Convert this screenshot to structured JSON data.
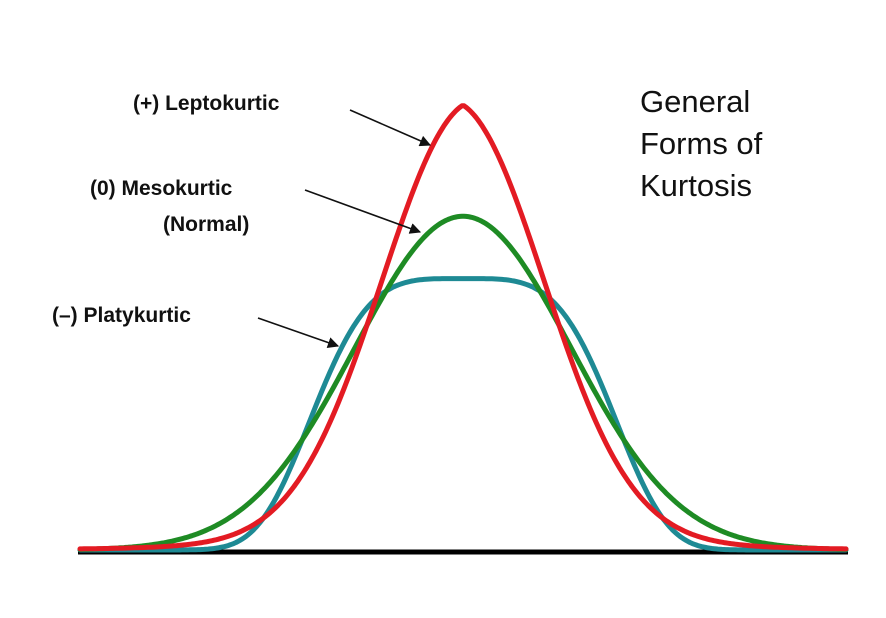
{
  "title_lines": [
    "General",
    "Forms of",
    "Kurtosis"
  ],
  "labels": {
    "leptokurtic": "(+) Leptokurtic",
    "mesokurtic": "(0) Mesokurtic",
    "normal": "(Normal)",
    "platykurtic": "(–) Platykurtic"
  },
  "colors": {
    "leptokurtic": "#e31b23",
    "mesokurtic": "#1e8b24",
    "platykurtic": "#1e8a94",
    "baseline": "#000000"
  },
  "chart_data": {
    "type": "line",
    "series": [
      {
        "name": "(+) Leptokurtic",
        "kurtosis": "positive",
        "relative_peak_height": 1.0
      },
      {
        "name": "(0) Mesokurtic",
        "kurtosis": "zero",
        "relative_peak_height": 0.75
      },
      {
        "name": "(–) Platykurtic",
        "kurtosis": "negative",
        "relative_peak_height": 0.61
      }
    ]
  }
}
